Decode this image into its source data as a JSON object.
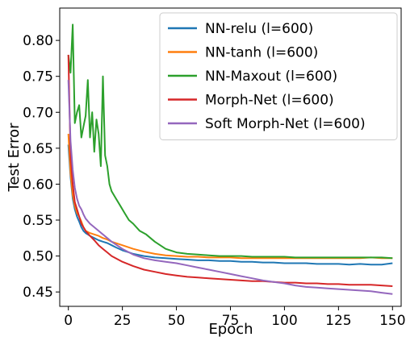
{
  "chart_data": {
    "type": "line",
    "title": "",
    "xlabel": "Epoch",
    "ylabel": "Test Error",
    "xlim": [
      -4,
      154
    ],
    "ylim": [
      0.43,
      0.845
    ],
    "xticks": [
      0,
      25,
      50,
      75,
      100,
      125,
      150
    ],
    "xtick_labels": [
      "0",
      "25",
      "50",
      "75",
      "100",
      "125",
      "150"
    ],
    "yticks": [
      0.45,
      0.5,
      0.55,
      0.6,
      0.65,
      0.7,
      0.75,
      0.8
    ],
    "ytick_labels": [
      "0.45",
      "0.50",
      "0.55",
      "0.60",
      "0.65",
      "0.70",
      "0.75",
      "0.80"
    ],
    "grid": false,
    "legend_position": "top-right",
    "series": [
      {
        "name": "NN-relu (l=600)",
        "color": "#1f77b4",
        "x": [
          0,
          1,
          2,
          3,
          4,
          5,
          6,
          7,
          8,
          9,
          10,
          12,
          14,
          16,
          18,
          20,
          22,
          25,
          28,
          30,
          35,
          40,
          45,
          50,
          55,
          60,
          65,
          70,
          75,
          80,
          85,
          90,
          95,
          100,
          105,
          110,
          115,
          120,
          125,
          130,
          135,
          140,
          145,
          150
        ],
        "y": [
          0.655,
          0.61,
          0.58,
          0.565,
          0.555,
          0.548,
          0.54,
          0.535,
          0.532,
          0.53,
          0.528,
          0.525,
          0.522,
          0.52,
          0.518,
          0.515,
          0.512,
          0.508,
          0.505,
          0.503,
          0.5,
          0.498,
          0.497,
          0.496,
          0.495,
          0.494,
          0.494,
          0.493,
          0.493,
          0.492,
          0.492,
          0.491,
          0.491,
          0.49,
          0.49,
          0.49,
          0.489,
          0.489,
          0.489,
          0.488,
          0.489,
          0.488,
          0.488,
          0.49
        ]
      },
      {
        "name": "NN-tanh (l=600)",
        "color": "#ff7f0e",
        "x": [
          0,
          1,
          2,
          3,
          4,
          5,
          6,
          7,
          8,
          10,
          12,
          14,
          16,
          18,
          20,
          25,
          30,
          35,
          40,
          45,
          50,
          55,
          60,
          65,
          70,
          75,
          80,
          85,
          90,
          95,
          100,
          105,
          110,
          115,
          120,
          125,
          130,
          135,
          140,
          145,
          150
        ],
        "y": [
          0.67,
          0.615,
          0.585,
          0.57,
          0.56,
          0.555,
          0.548,
          0.54,
          0.535,
          0.532,
          0.53,
          0.528,
          0.525,
          0.523,
          0.52,
          0.515,
          0.51,
          0.506,
          0.503,
          0.501,
          0.5,
          0.499,
          0.499,
          0.498,
          0.498,
          0.498,
          0.497,
          0.497,
          0.497,
          0.497,
          0.497,
          0.497,
          0.497,
          0.497,
          0.497,
          0.497,
          0.497,
          0.497,
          0.498,
          0.497,
          0.497
        ]
      },
      {
        "name": "NN-Maxout (l=600)",
        "color": "#2ca02c",
        "x": [
          0,
          1,
          2,
          3,
          4,
          5,
          6,
          7,
          8,
          9,
          10,
          11,
          12,
          13,
          14,
          15,
          16,
          17,
          18,
          19,
          20,
          22,
          24,
          26,
          28,
          30,
          33,
          36,
          40,
          45,
          50,
          55,
          60,
          65,
          70,
          75,
          80,
          85,
          90,
          95,
          100,
          105,
          110,
          115,
          120,
          125,
          130,
          135,
          140,
          145,
          150
        ],
        "y": [
          0.78,
          0.755,
          0.822,
          0.685,
          0.7,
          0.71,
          0.665,
          0.68,
          0.695,
          0.745,
          0.665,
          0.7,
          0.645,
          0.69,
          0.67,
          0.625,
          0.75,
          0.64,
          0.625,
          0.6,
          0.59,
          0.58,
          0.57,
          0.56,
          0.55,
          0.545,
          0.535,
          0.53,
          0.52,
          0.51,
          0.505,
          0.503,
          0.502,
          0.501,
          0.5,
          0.5,
          0.5,
          0.499,
          0.499,
          0.499,
          0.499,
          0.498,
          0.498,
          0.498,
          0.498,
          0.498,
          0.498,
          0.498,
          0.498,
          0.498,
          0.497
        ]
      },
      {
        "name": "Morph-Net (l=600)",
        "color": "#d62728",
        "x": [
          0,
          1,
          2,
          3,
          4,
          5,
          6,
          7,
          8,
          10,
          12,
          14,
          16,
          18,
          20,
          25,
          30,
          35,
          40,
          45,
          50,
          55,
          60,
          65,
          70,
          75,
          80,
          85,
          90,
          95,
          100,
          105,
          110,
          115,
          120,
          125,
          130,
          135,
          140,
          145,
          150
        ],
        "y": [
          0.78,
          0.64,
          0.6,
          0.575,
          0.565,
          0.555,
          0.545,
          0.54,
          0.535,
          0.528,
          0.522,
          0.515,
          0.51,
          0.505,
          0.5,
          0.492,
          0.486,
          0.481,
          0.478,
          0.475,
          0.473,
          0.471,
          0.47,
          0.469,
          0.468,
          0.467,
          0.466,
          0.465,
          0.465,
          0.464,
          0.463,
          0.463,
          0.462,
          0.462,
          0.461,
          0.461,
          0.46,
          0.46,
          0.46,
          0.459,
          0.458
        ]
      },
      {
        "name": "Soft Morph-Net (l=600)",
        "color": "#9467bd",
        "x": [
          0,
          1,
          2,
          3,
          4,
          5,
          6,
          7,
          8,
          10,
          12,
          14,
          16,
          18,
          20,
          25,
          30,
          35,
          40,
          45,
          50,
          55,
          60,
          65,
          70,
          75,
          80,
          85,
          90,
          95,
          100,
          105,
          110,
          115,
          120,
          125,
          130,
          135,
          140,
          145,
          150
        ],
        "y": [
          0.745,
          0.66,
          0.62,
          0.595,
          0.58,
          0.57,
          0.565,
          0.558,
          0.552,
          0.545,
          0.54,
          0.535,
          0.53,
          0.525,
          0.52,
          0.51,
          0.502,
          0.497,
          0.494,
          0.492,
          0.49,
          0.487,
          0.484,
          0.481,
          0.478,
          0.475,
          0.472,
          0.469,
          0.466,
          0.464,
          0.462,
          0.459,
          0.457,
          0.456,
          0.455,
          0.454,
          0.453,
          0.452,
          0.451,
          0.449,
          0.447
        ]
      }
    ]
  }
}
